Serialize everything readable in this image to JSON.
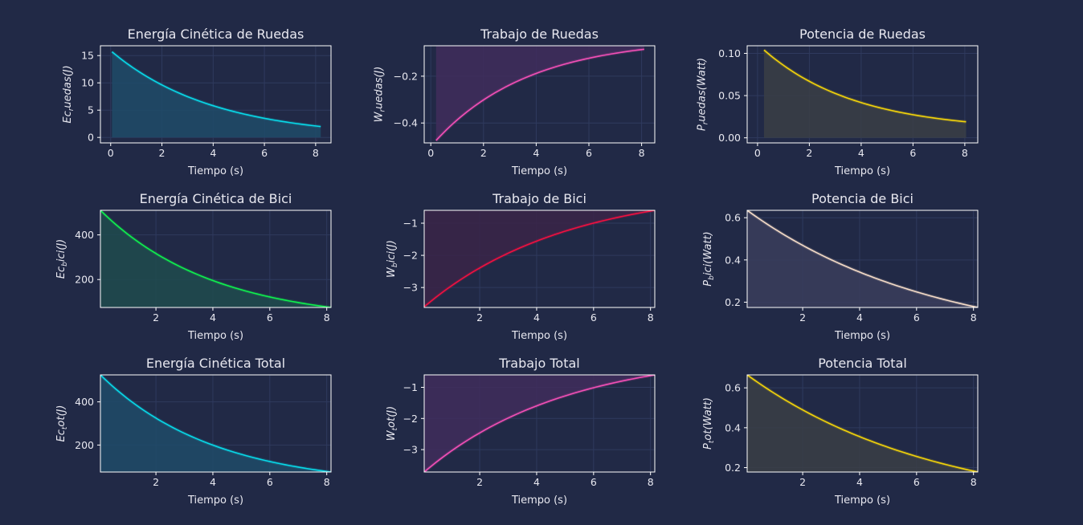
{
  "theme": {
    "background": "#212946",
    "grid": "#2f3a5e",
    "frame": "#ffffff",
    "text": "#e8e8f0"
  },
  "chart_data": [
    {
      "type": "area",
      "title": "Energía Cinética de Ruedas",
      "xlabel": "Tiempo (s)",
      "ylabel": "Ec_ruedas(J)",
      "ylabel_main": "Ec",
      "ylabel_sub": "r",
      "ylabel_rest": "uedas(J)",
      "color": "#08d9e8",
      "fill": "#1f4b68",
      "xlim": [
        -0.4,
        8.6
      ],
      "ylim": [
        -1,
        16.8
      ],
      "xticks": [
        0,
        2,
        4,
        6,
        8
      ],
      "yticks": [
        0,
        5,
        10,
        15
      ],
      "x_start": 0.05,
      "x_end": 8.2,
      "y_start": 15.7,
      "y_end": 2.0,
      "curve": 0.25
    },
    {
      "type": "area",
      "title": "Trabajo de Ruedas",
      "xlabel": "Tiempo (s)",
      "ylabel": "W_ruedas(J)",
      "ylabel_main": "W",
      "ylabel_sub": "r",
      "ylabel_rest": "uedas(J)",
      "color": "#f24fb6",
      "fill": "#3f2d5c",
      "xlim": [
        -0.25,
        8.5
      ],
      "ylim": [
        -0.485,
        -0.07
      ],
      "xticks": [
        0,
        2,
        4,
        6,
        8
      ],
      "yticks": [
        -0.4,
        -0.2
      ],
      "x_start": 0.2,
      "x_end": 8.1,
      "y_start": -0.475,
      "y_end": -0.085,
      "curve": 0.28
    },
    {
      "type": "area",
      "title": "Potencia de Ruedas",
      "xlabel": "Tiempo (s)",
      "ylabel": "P_ruedas(Watt)",
      "ylabel_main": "P",
      "ylabel_sub": "r",
      "ylabel_rest": "uedas(Watt)",
      "color": "#f2d30a",
      "fill": "#3a3e45",
      "xlim": [
        -0.4,
        8.5
      ],
      "ylim": [
        -0.006,
        0.109
      ],
      "xticks": [
        0,
        2,
        4,
        6,
        8
      ],
      "yticks": [
        0.0,
        0.05,
        0.1
      ],
      "x_start": 0.25,
      "x_end": 8.05,
      "y_start": 0.104,
      "y_end": 0.019,
      "curve": 0.28
    },
    {
      "type": "area",
      "title": "Energía Cinética de Bici",
      "xlabel": "Tiempo (s)",
      "ylabel": "Ec_bici(J)",
      "ylabel_main": "Ec",
      "ylabel_sub": "b",
      "ylabel_rest": "ici(J)",
      "color": "#0ff04e",
      "fill": "#1f4b4e",
      "xlim": [
        0.05,
        8.15
      ],
      "ylim": [
        75,
        510
      ],
      "xticks": [
        2,
        4,
        6,
        8
      ],
      "yticks": [
        200,
        400
      ],
      "x_start": 0.05,
      "x_end": 8.15,
      "y_start": 510,
      "y_end": 75,
      "curve": 0.25
    },
    {
      "type": "area",
      "title": "Trabajo de Bici",
      "xlabel": "Tiempo (s)",
      "ylabel": "W_bici(J)",
      "ylabel_main": "W",
      "ylabel_sub": "b",
      "ylabel_rest": "ici(J)",
      "color": "#f01040",
      "fill": "#3a2448",
      "xlim": [
        0.05,
        8.15
      ],
      "ylim": [
        -3.62,
        -0.6
      ],
      "xticks": [
        2,
        4,
        6,
        8
      ],
      "yticks": [
        -3,
        -2,
        -1
      ],
      "x_start": 0.05,
      "x_end": 8.15,
      "y_start": -3.6,
      "y_end": -0.6,
      "curve": 0.2
    },
    {
      "type": "area",
      "title": "Potencia de Bici",
      "xlabel": "Tiempo (s)",
      "ylabel": "P_bici(Watt)",
      "ylabel_main": "P",
      "ylabel_sub": "b",
      "ylabel_rest": "ici(Watt)",
      "color": "#f5dcc8",
      "fill": "#3a3d5c",
      "xlim": [
        0.05,
        8.15
      ],
      "ylim": [
        0.175,
        0.635
      ],
      "xticks": [
        2,
        4,
        6,
        8
      ],
      "yticks": [
        0.2,
        0.4,
        0.6
      ],
      "x_start": 0.05,
      "x_end": 8.15,
      "y_start": 0.635,
      "y_end": 0.175,
      "curve": 0.15
    },
    {
      "type": "area",
      "title": "Energía Cinética Total",
      "xlabel": "Tiempo (s)",
      "ylabel": "Ec_tot(J)",
      "ylabel_main": "Ec",
      "ylabel_sub": "t",
      "ylabel_rest": "ot(J)",
      "color": "#08d9e8",
      "fill": "#1f4b68",
      "xlim": [
        0.05,
        8.15
      ],
      "ylim": [
        75,
        525
      ],
      "xticks": [
        2,
        4,
        6,
        8
      ],
      "yticks": [
        200,
        400
      ],
      "x_start": 0.05,
      "x_end": 8.15,
      "y_start": 525,
      "y_end": 75,
      "curve": 0.25
    },
    {
      "type": "area",
      "title": "Trabajo Total",
      "xlabel": "Tiempo (s)",
      "ylabel": "W_tot(J)",
      "ylabel_main": "W",
      "ylabel_sub": "t",
      "ylabel_rest": "ot(J)",
      "color": "#f24fb6",
      "fill": "#3f2d5c",
      "xlim": [
        0.05,
        8.15
      ],
      "ylim": [
        -3.72,
        -0.6
      ],
      "xticks": [
        2,
        4,
        6,
        8
      ],
      "yticks": [
        -3,
        -2,
        -1
      ],
      "x_start": 0.05,
      "x_end": 8.15,
      "y_start": -3.72,
      "y_end": -0.6,
      "curve": 0.2
    },
    {
      "type": "area",
      "title": "Potencia Total",
      "xlabel": "Tiempo (s)",
      "ylabel": "P_tot(Watt)",
      "ylabel_main": "P",
      "ylabel_sub": "t",
      "ylabel_rest": "ot(Watt)",
      "color": "#f2d30a",
      "fill": "#3a3e45",
      "xlim": [
        0.05,
        8.15
      ],
      "ylim": [
        0.178,
        0.665
      ],
      "xticks": [
        2,
        4,
        6,
        8
      ],
      "yticks": [
        0.2,
        0.4,
        0.6
      ],
      "x_start": 0.05,
      "x_end": 8.15,
      "y_start": 0.665,
      "y_end": 0.178,
      "curve": 0.15
    }
  ]
}
